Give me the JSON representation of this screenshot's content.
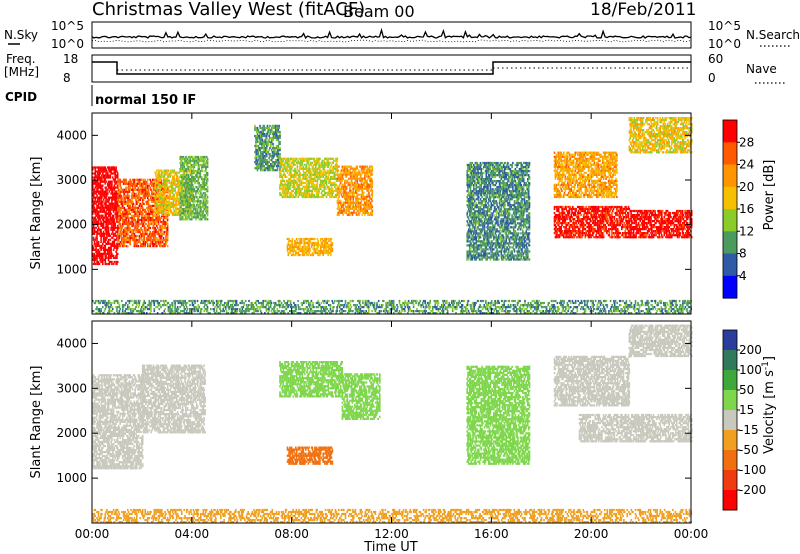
{
  "header": {
    "station": "Christmas Valley West (fitACF)",
    "beam": "Beam 00",
    "date": "18/Feb/2011"
  },
  "params_panel": {
    "nsky_label": "N.Sky",
    "nsky_ticks": [
      "10^5",
      "10^0"
    ],
    "nsearch_label": "N.Search",
    "nsearch_ticks": [
      "10^5",
      "10^0"
    ],
    "freq_label": "Freq.",
    "freq_unit": "[MHz]",
    "freq_ticks": [
      18,
      8
    ],
    "nave_label": "Nave",
    "nave_ticks": [
      60,
      0
    ],
    "cpid_label": "CPID",
    "cpid_value": "normal 150 IF"
  },
  "chart_data": [
    {
      "type": "heatmap",
      "name": "power-panel",
      "ylabel": "Slant Range [km]",
      "xlim": [
        "00:00",
        "00:00"
      ],
      "ylim": [
        0,
        4500
      ],
      "y_ticks": [
        1000,
        2000,
        3000,
        4000
      ],
      "colorbar": {
        "label": "Power [dB]",
        "ticks": [
          28,
          24,
          20,
          16,
          12,
          8,
          4
        ],
        "colors": [
          "#ff0000",
          "#ff5a00",
          "#ff9600",
          "#f5c000",
          "#8ccc2a",
          "#4a9b5e",
          "#2e5aa6",
          "#0000ff"
        ]
      },
      "regions": [
        {
          "t": [
            0.0,
            1.0
          ],
          "r": [
            1100,
            3300
          ],
          "v": 28
        },
        {
          "t": [
            1.0,
            3.0
          ],
          "r": [
            1500,
            3000
          ],
          "v": 22
        },
        {
          "t": [
            2.5,
            4.0
          ],
          "r": [
            2200,
            3200
          ],
          "v": 14
        },
        {
          "t": [
            3.5,
            4.6
          ],
          "r": [
            2100,
            3500
          ],
          "v": 8
        },
        {
          "t": [
            6.5,
            7.5
          ],
          "r": [
            3200,
            4200
          ],
          "v": 6
        },
        {
          "t": [
            7.5,
            9.8
          ],
          "r": [
            2600,
            3500
          ],
          "v": 12
        },
        {
          "t": [
            7.8,
            9.6
          ],
          "r": [
            1300,
            1700
          ],
          "v": 16
        },
        {
          "t": [
            9.8,
            11.2
          ],
          "r": [
            2200,
            3300
          ],
          "v": 18
        },
        {
          "t": [
            15.0,
            17.5
          ],
          "r": [
            1200,
            3400
          ],
          "v": 5
        },
        {
          "t": [
            18.5,
            21.5
          ],
          "r": [
            1700,
            2400
          ],
          "v": 26
        },
        {
          "t": [
            18.5,
            21.0
          ],
          "r": [
            2600,
            3600
          ],
          "v": 17
        },
        {
          "t": [
            21.5,
            24.0
          ],
          "r": [
            1700,
            2300
          ],
          "v": 27
        },
        {
          "t": [
            21.5,
            24.0
          ],
          "r": [
            3600,
            4400
          ],
          "v": 14
        },
        {
          "t": [
            0.0,
            24.0
          ],
          "r": [
            0,
            300
          ],
          "v": 6
        }
      ]
    },
    {
      "type": "heatmap",
      "name": "velocity-panel",
      "ylabel": "Slant Range [km]",
      "xlabel": "Time UT",
      "x_ticks": [
        "00:00",
        "04:00",
        "08:00",
        "12:00",
        "16:00",
        "20:00",
        "00:00"
      ],
      "ylim": [
        0,
        4500
      ],
      "y_ticks": [
        1000,
        2000,
        3000,
        4000
      ],
      "colorbar": {
        "label": "Velocity [m s^-1]",
        "ticks": [
          200,
          100,
          50,
          15,
          -15,
          -50,
          -100,
          -200
        ],
        "colors": [
          "#2a3d9c",
          "#2f7a5c",
          "#3ea83a",
          "#7ed64b",
          "#c8c8bc",
          "#f0a020",
          "#f07010",
          "#f03a10",
          "#ff0000"
        ]
      },
      "regions": [
        {
          "t": [
            0.0,
            2.0
          ],
          "r": [
            1200,
            3300
          ],
          "v": 0
        },
        {
          "t": [
            2.0,
            4.5
          ],
          "r": [
            2000,
            3500
          ],
          "v": 0
        },
        {
          "t": [
            7.5,
            10.0
          ],
          "r": [
            2800,
            3600
          ],
          "v": 40
        },
        {
          "t": [
            7.8,
            9.6
          ],
          "r": [
            1300,
            1700
          ],
          "v": -60
        },
        {
          "t": [
            10.0,
            11.5
          ],
          "r": [
            2300,
            3300
          ],
          "v": 40
        },
        {
          "t": [
            15.0,
            17.5
          ],
          "r": [
            1300,
            3500
          ],
          "v": 30
        },
        {
          "t": [
            18.5,
            21.5
          ],
          "r": [
            2600,
            3700
          ],
          "v": 0
        },
        {
          "t": [
            19.5,
            24.0
          ],
          "r": [
            1800,
            2400
          ],
          "v": 0
        },
        {
          "t": [
            21.5,
            24.0
          ],
          "r": [
            3700,
            4400
          ],
          "v": 0
        },
        {
          "t": [
            0.0,
            24.0
          ],
          "r": [
            0,
            300
          ],
          "v": -30
        }
      ]
    }
  ]
}
